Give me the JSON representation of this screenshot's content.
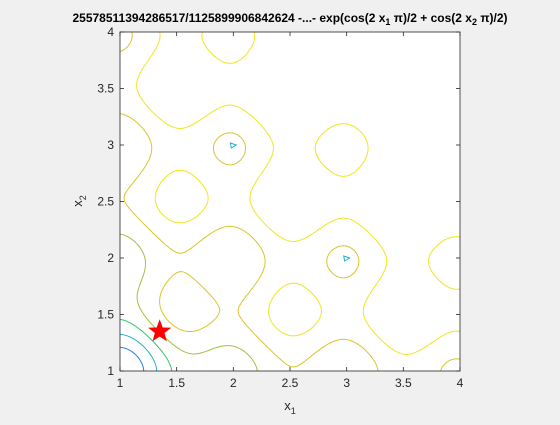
{
  "chart_data": {
    "type": "contour",
    "title_parts": [
      "2557851139428651​7/11258999068426​24 -...- exp(cos(2 x",
      "1",
      " π)/2 + cos(2 x",
      "2",
      " π)/2)"
    ],
    "xlabel": {
      "base": "x",
      "sub": "1"
    },
    "ylabel": {
      "base": "x",
      "sub": "2"
    },
    "xlim": [
      1,
      4
    ],
    "ylim": [
      1,
      4
    ],
    "xticks": [
      "1",
      "1.5",
      "2",
      "2.5",
      "3",
      "3.5",
      "4"
    ],
    "yticks": [
      "1",
      "1.5",
      "2",
      "2.5",
      "3",
      "3.5",
      "4"
    ],
    "grid": false,
    "contour_levels": [
      -0.3,
      -0.1,
      0.1,
      0.3,
      0.5,
      0.7
    ],
    "level_colors": [
      "#3b3bd6",
      "#2a7de0",
      "#22b0c8",
      "#33c46a",
      "#9fc23e",
      "#d9c52a",
      "#f0e51e"
    ],
    "local_minima": [
      {
        "x": 2,
        "y": 3
      },
      {
        "x": 3,
        "y": 2
      }
    ],
    "marker": {
      "type": "pentagram",
      "x": 1.35,
      "y": 1.35,
      "color": "#ff0000"
    }
  }
}
